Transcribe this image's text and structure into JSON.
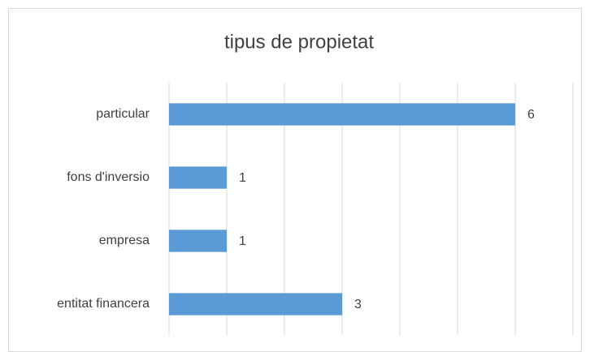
{
  "chart_data": {
    "type": "barh",
    "title": "tipus de propietat",
    "categories": [
      "particular",
      "fons d'inversio",
      "empresa",
      "entitat financera"
    ],
    "values": [
      6,
      1,
      1,
      3
    ],
    "color": "#5b9bd5",
    "xlim": [
      0,
      7
    ],
    "xticks": [
      0,
      1,
      2,
      3,
      4,
      5,
      6,
      7
    ],
    "grid": true,
    "tick_labels": false,
    "value_labels_shown": true
  }
}
